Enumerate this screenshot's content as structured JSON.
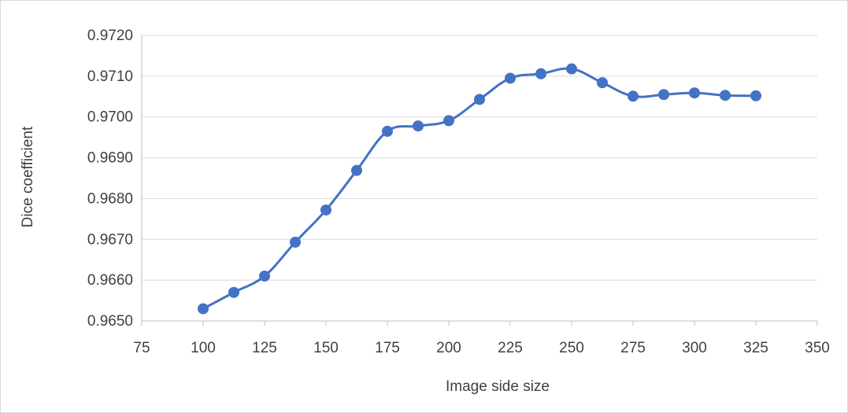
{
  "chart_data": {
    "type": "line",
    "title": "",
    "xlabel": "Image side size",
    "ylabel": "Dice coefficient",
    "xlim": [
      75,
      350
    ],
    "ylim": [
      0.965,
      0.972
    ],
    "x_ticks": [
      75,
      100,
      125,
      150,
      175,
      200,
      225,
      250,
      275,
      300,
      325,
      350
    ],
    "y_ticks": [
      0.965,
      0.966,
      0.967,
      0.968,
      0.969,
      0.97,
      0.971,
      0.972
    ],
    "y_tick_decimals": 4,
    "grid": "horizontal",
    "legend": "none",
    "series": [
      {
        "color": "#4472c4",
        "x": [
          100,
          112.5,
          125,
          137.5,
          150,
          162.5,
          175,
          187.5,
          200,
          212.5,
          225,
          237.5,
          250,
          262.5,
          275,
          287.5,
          300,
          312.5,
          325
        ],
        "y": [
          0.9653,
          0.9657,
          0.9661,
          0.96693,
          0.96772,
          0.96869,
          0.96965,
          0.96978,
          0.96991,
          0.97043,
          0.97095,
          0.97106,
          0.97118,
          0.97084,
          0.97051,
          0.97055,
          0.97059,
          0.97053,
          0.97052
        ]
      }
    ]
  }
}
